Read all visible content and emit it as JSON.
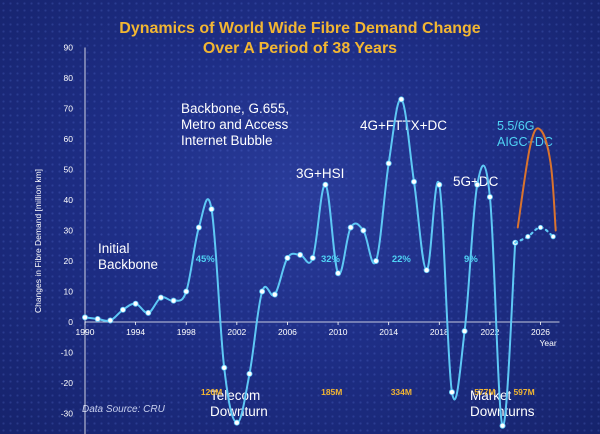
{
  "chart_data": {
    "type": "line",
    "title": "Dynamics of World Wide Fibre Demand Change",
    "subtitle": "Over A Period of 38 Years",
    "xlabel": "Year",
    "ylabel": "Changes in Fibre Demand [million km]",
    "xlim": [
      1990,
      2027.5
    ],
    "ylim": [
      -40,
      90
    ],
    "xticks": [
      1990,
      1994,
      1998,
      2002,
      2006,
      2010,
      2014,
      2018,
      2022,
      2026
    ],
    "yticks": [
      -40,
      -30,
      -20,
      -10,
      0,
      10,
      20,
      30,
      40,
      50,
      60,
      70,
      80,
      90
    ],
    "grid": false,
    "series": [
      {
        "color": "#5ec8f5",
        "x": [
          1990,
          1991,
          1992,
          1993,
          1994,
          1995,
          1996,
          1997,
          1998,
          1999,
          2000,
          2001,
          2002,
          2003,
          2004,
          2005,
          2006,
          2007,
          2008,
          2009,
          2010,
          2011,
          2012,
          2013,
          2014,
          2015,
          2016,
          2017,
          2018,
          2019,
          2020,
          2021,
          2022,
          2023,
          2024
        ],
        "values": [
          1.5,
          1,
          0.5,
          4,
          6,
          3,
          8,
          7,
          10,
          31,
          37,
          -15,
          -33,
          -17,
          10,
          9,
          21,
          22,
          21,
          45,
          16,
          31,
          30,
          20,
          52,
          73,
          46,
          17,
          45,
          -23,
          -3,
          45,
          41,
          -34,
          26
        ]
      },
      {
        "color": "#5ec8f5",
        "style": "dotted",
        "x": [
          2024,
          2025,
          2026,
          2027
        ],
        "values": [
          26,
          28,
          31,
          28
        ]
      },
      {
        "color": "#d9732e",
        "x": [
          2024.2,
          2025.2,
          2026,
          2026.8,
          2027.2
        ],
        "values": [
          31,
          58,
          63,
          52,
          30
        ]
      }
    ],
    "annotations": [
      {
        "text": "Initial\nBackbone"
      },
      {
        "text": "Backbone, G.655,\nMetro and Access\nInternet Bubble"
      },
      {
        "text": "3G+HSI"
      },
      {
        "text": "4G+FTTX+DC"
      },
      {
        "text": "5G+DC"
      },
      {
        "text": "5.5/6G\nAIGC+DC"
      },
      {
        "text": "Telecom\nDownturn"
      },
      {
        "text": "Market\nDownturns"
      }
    ],
    "percent_labels": [
      {
        "x": 1999.5,
        "y": 21,
        "text": "45%"
      },
      {
        "x": 2009.4,
        "y": 21,
        "text": "32%"
      },
      {
        "x": 2015,
        "y": 21,
        "text": "22%"
      },
      {
        "x": 2020.5,
        "y": 21,
        "text": "9%"
      }
    ],
    "amount_labels": [
      {
        "x": 2000,
        "y": -23,
        "text": "120M"
      },
      {
        "x": 2009.5,
        "y": -23,
        "text": "185M"
      },
      {
        "x": 2015,
        "y": -23,
        "text": "334M"
      },
      {
        "x": 2021.6,
        "y": -23,
        "text": "577M"
      },
      {
        "x": 2024.7,
        "y": -23,
        "text": "597M"
      }
    ],
    "source": "Data Source: CRU"
  }
}
